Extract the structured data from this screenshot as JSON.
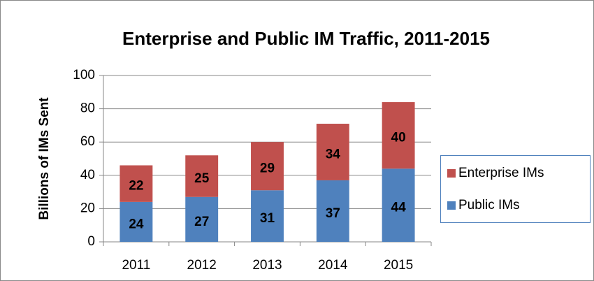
{
  "chart_data": {
    "type": "stacked-bar",
    "title": "Enterprise and Public IM Traffic, 2011-2015",
    "y_label": "Billions of IMs Sent",
    "categories": [
      "2011",
      "2012",
      "2013",
      "2014",
      "2015"
    ],
    "series": [
      {
        "name": "Public IMs",
        "color": "#4f81bd",
        "values": [
          24,
          27,
          31,
          37,
          44
        ]
      },
      {
        "name": "Enterprise IMs",
        "color": "#c0504d",
        "values": [
          22,
          25,
          29,
          34,
          40
        ]
      }
    ],
    "ylim": [
      0,
      100
    ],
    "yticks": [
      0,
      20,
      40,
      60,
      80,
      100
    ],
    "grid": true,
    "legend": "right"
  }
}
